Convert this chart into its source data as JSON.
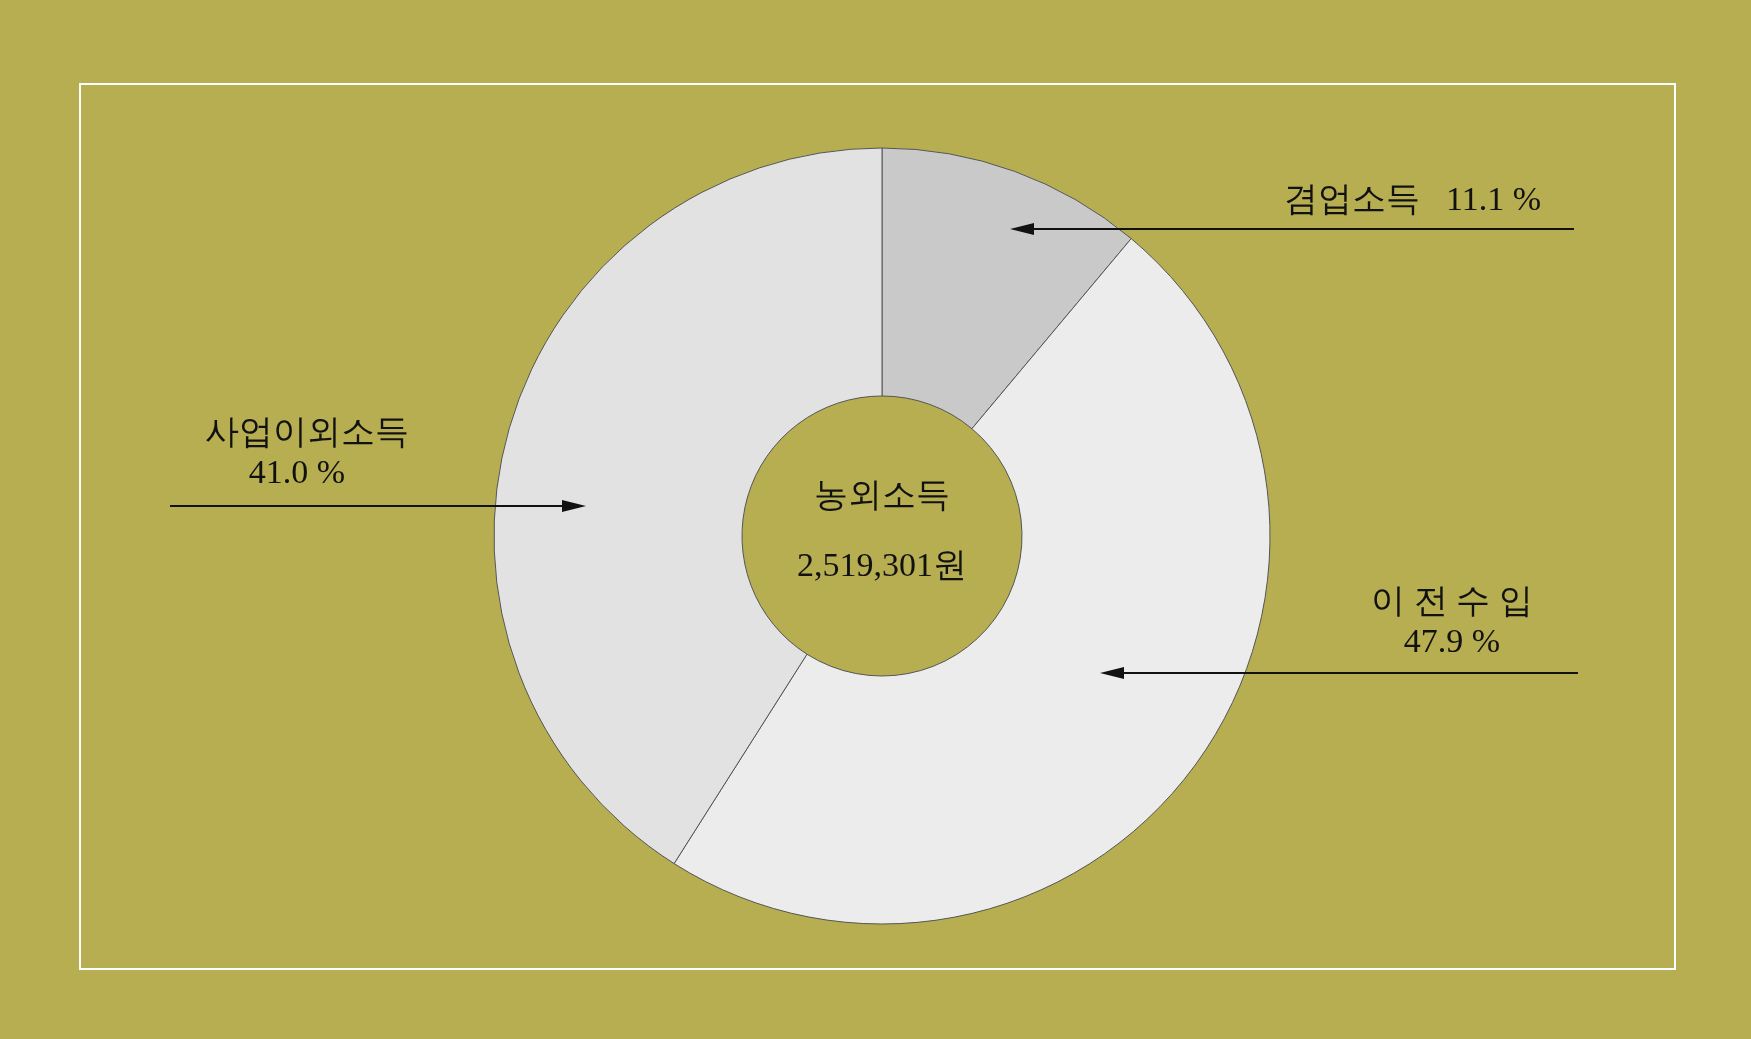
{
  "chart_data": {
    "type": "donut",
    "categories": [
      "겸업소득",
      "이 전 수 입",
      "사업이외소득"
    ],
    "values": [
      11.1,
      47.9,
      41.0
    ],
    "colors": [
      "#c9c9c9",
      "#ececec",
      "#e2e2e2"
    ],
    "value_labels": [
      "11.1 %",
      "47.9 %",
      "41.0 %"
    ],
    "annotations": [
      "농외소득",
      "2,519,301원"
    ]
  }
}
